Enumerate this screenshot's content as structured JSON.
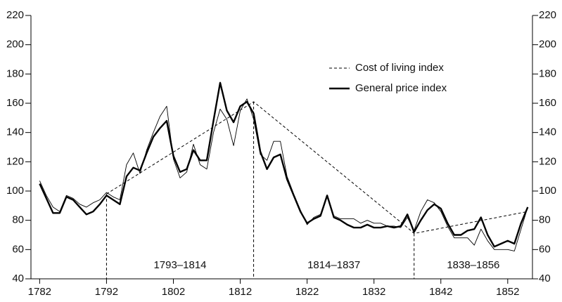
{
  "chart_data": {
    "type": "line",
    "x": [
      1782,
      1783,
      1784,
      1785,
      1786,
      1787,
      1788,
      1789,
      1790,
      1791,
      1792,
      1793,
      1794,
      1795,
      1796,
      1797,
      1798,
      1799,
      1800,
      1801,
      1802,
      1803,
      1804,
      1805,
      1806,
      1807,
      1808,
      1809,
      1810,
      1811,
      1812,
      1813,
      1814,
      1815,
      1816,
      1817,
      1818,
      1819,
      1820,
      1821,
      1822,
      1823,
      1824,
      1825,
      1826,
      1827,
      1828,
      1829,
      1830,
      1831,
      1832,
      1833,
      1834,
      1835,
      1836,
      1837,
      1838,
      1839,
      1840,
      1841,
      1842,
      1843,
      1844,
      1845,
      1846,
      1847,
      1848,
      1849,
      1850,
      1851,
      1852,
      1853,
      1854,
      1855
    ],
    "series": [
      {
        "color": "#000000",
        "width": 0.9,
        "values": [
          107,
          97,
          89,
          86,
          97,
          95,
          91,
          89,
          92,
          94,
          99,
          96,
          94,
          118,
          126,
          112,
          128,
          140,
          151,
          158,
          122,
          109,
          113,
          132,
          118,
          115,
          140,
          156,
          149,
          131,
          155,
          163,
          149,
          125,
          121,
          134,
          134,
          110,
          98,
          87,
          77,
          82,
          84,
          96,
          83,
          81,
          81,
          81,
          78,
          80,
          78,
          78,
          76,
          76,
          75,
          82,
          73,
          86,
          94,
          92,
          86,
          76,
          68,
          68,
          68,
          63,
          74,
          66,
          60,
          60,
          60,
          59,
          74,
          89
        ]
      },
      {
        "name": "General price index",
        "color": "#000000",
        "width": 2.4,
        "values": [
          105,
          95,
          85,
          85,
          96,
          94,
          89,
          84,
          86,
          91,
          97,
          94,
          91,
          110,
          116,
          114,
          126,
          137,
          143,
          148,
          124,
          113,
          115,
          128,
          121,
          121,
          148,
          174,
          155,
          147,
          158,
          161,
          153,
          127,
          115,
          123,
          125,
          108,
          97,
          86,
          78,
          81,
          83,
          97,
          82,
          80,
          77,
          75,
          75,
          77,
          75,
          75,
          76,
          75,
          76,
          84,
          72,
          80,
          87,
          91,
          88,
          78,
          70,
          70,
          73,
          74,
          82,
          70,
          62,
          64,
          66,
          64,
          78,
          89
        ]
      },
      {
        "name": "Cost of living index",
        "color": "#000000",
        "width": 1,
        "dashed": true,
        "x": [
          1792,
          1814,
          1837,
          1838,
          1855
        ],
        "values": [
          98,
          161,
          75,
          71,
          86
        ]
      }
    ],
    "annotations": [
      "1793–1814",
      "1814–1837",
      "1838–1856"
    ],
    "xlim": [
      1780.7,
      1855.7
    ],
    "xticks": [
      1782,
      1792,
      1802,
      1812,
      1822,
      1832,
      1842,
      1852
    ],
    "ylim": [
      40,
      220
    ],
    "yticks": [
      40,
      60,
      80,
      100,
      120,
      140,
      160,
      180,
      200,
      220
    ],
    "y2lim": [
      40,
      220
    ],
    "y2ticks": [
      40,
      60,
      80,
      100,
      120,
      140,
      160,
      180,
      200,
      220
    ]
  }
}
